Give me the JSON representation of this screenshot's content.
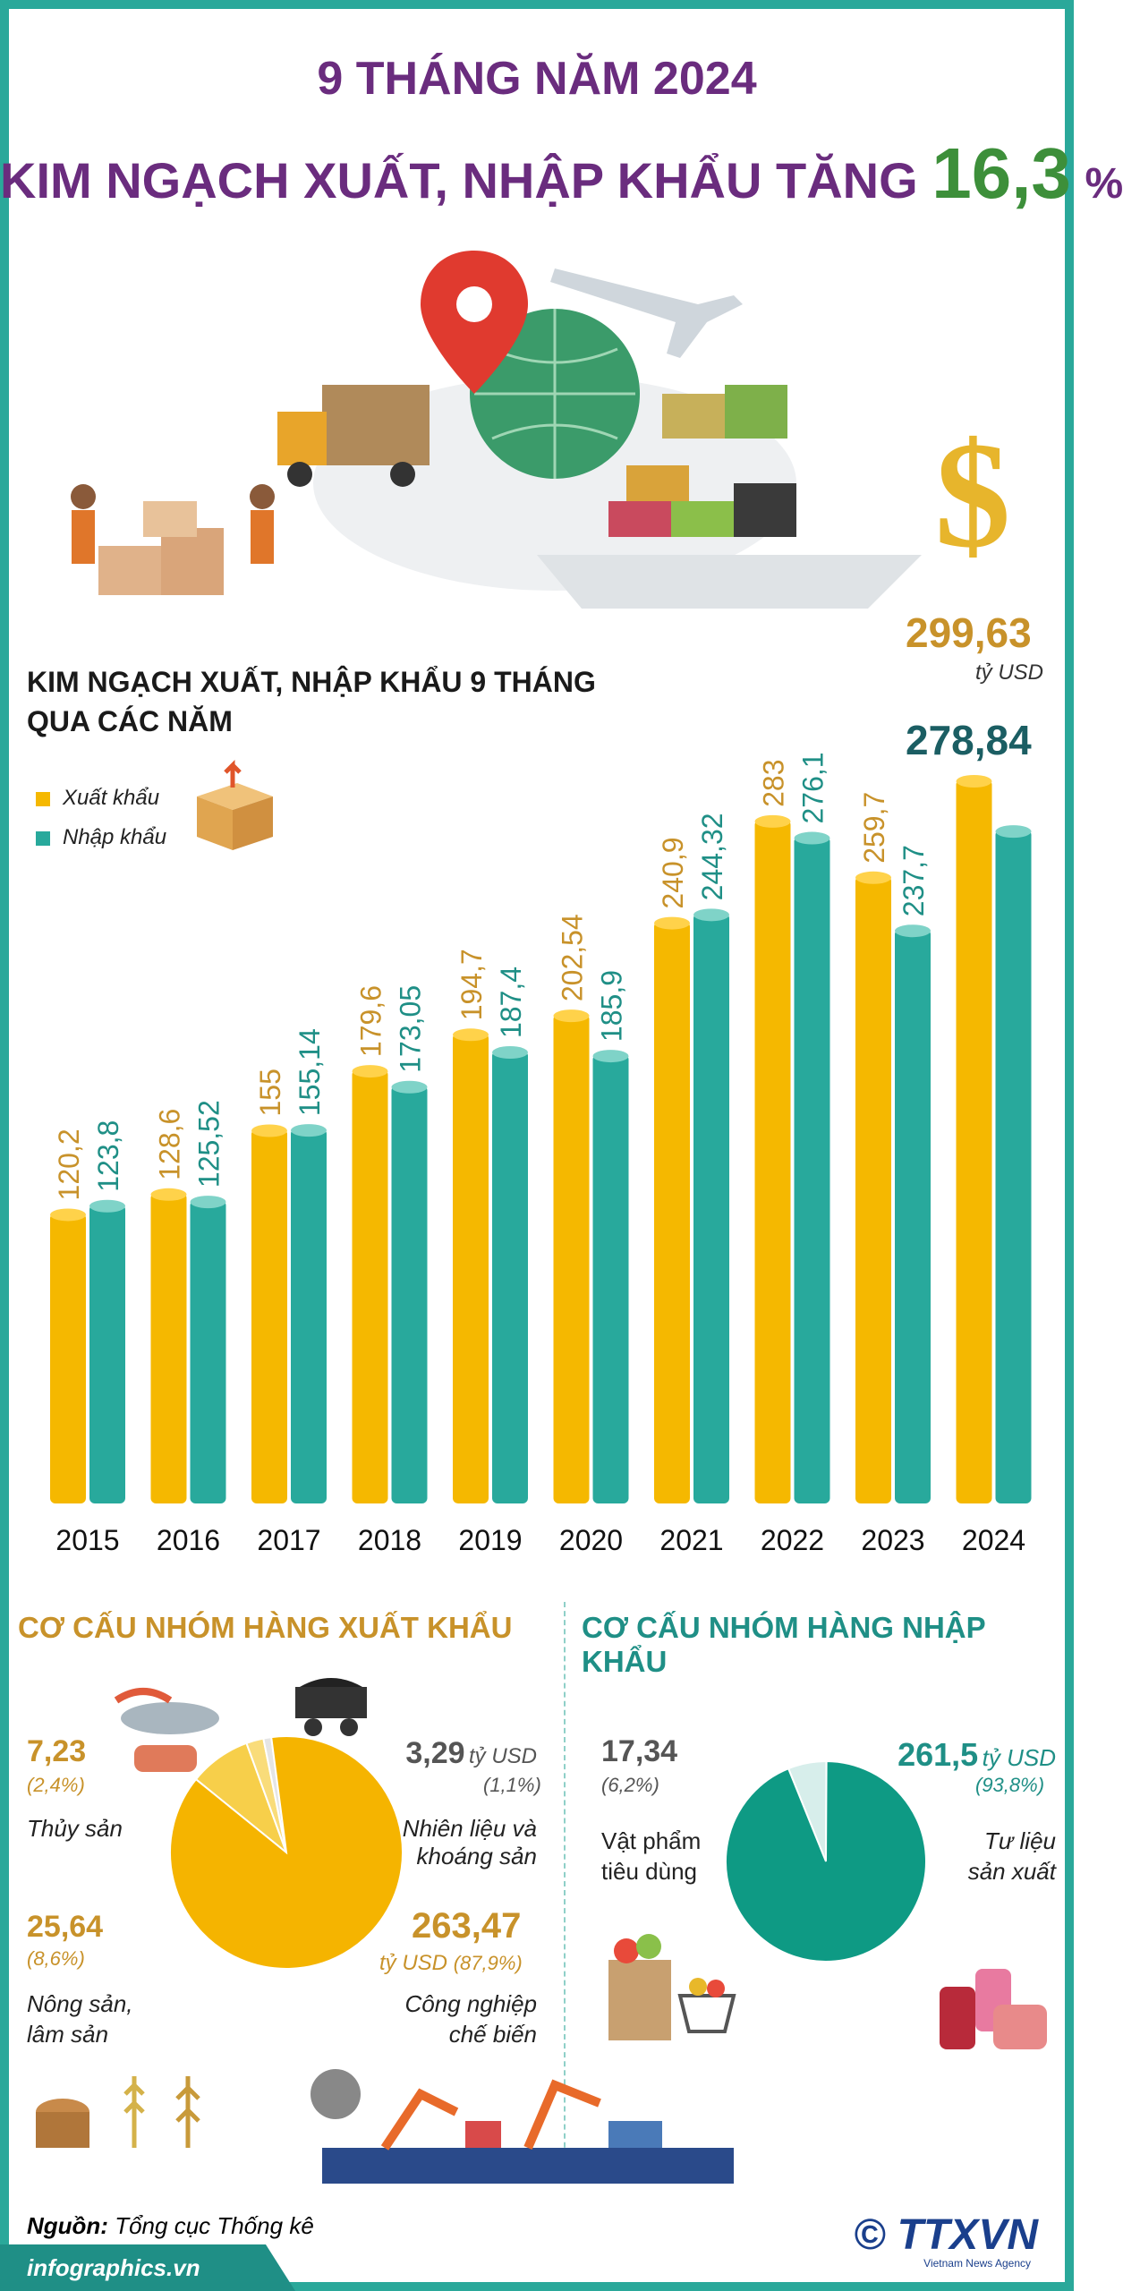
{
  "header": {
    "line1": "9 THÁNG NĂM 2024",
    "line2_prefix": "KIM NGẠCH XUẤT, NHẬP KHẨU TĂNG",
    "line2_value": "16,3",
    "line2_unit": "%"
  },
  "chart_section": {
    "title_line1": "KIM NGẠCH XUẤT, NHẬP KHẨU 9 THÁNG",
    "title_line2": "QUA CÁC NĂM"
  },
  "chart_data": {
    "type": "bar",
    "categories": [
      "2015",
      "2016",
      "2017",
      "2018",
      "2019",
      "2020",
      "2021",
      "2022",
      "2023",
      "2024"
    ],
    "series": [
      {
        "name": "Xuất khẩu",
        "values": [
          120.2,
          128.6,
          155,
          179.6,
          194.7,
          202.54,
          240.9,
          283,
          259.7,
          299.63
        ],
        "labels": [
          "120,2",
          "128,6",
          "155",
          "179,6",
          "194,7",
          "202,54",
          "240,9",
          "283",
          "259,7",
          "299,63"
        ],
        "color": "#f5b800"
      },
      {
        "name": "Nhập khẩu",
        "values": [
          123.8,
          125.52,
          155.14,
          173.05,
          187.4,
          185.9,
          244.32,
          276.1,
          237.7,
          278.84
        ],
        "labels": [
          "123,8",
          "125,52",
          "155,14",
          "173,05",
          "187,4",
          "185,9",
          "244,32",
          "276,1",
          "237,7",
          "278,84"
        ],
        "color": "#28a99c"
      }
    ],
    "ylim": [
      0,
      300
    ],
    "highlight": {
      "export_value": "299,63",
      "import_value": "278,84",
      "unit": "tỷ USD"
    }
  },
  "export_structure": {
    "title": "CƠ CẤU NHÓM HÀNG XUẤT KHẨU",
    "items": [
      {
        "name": "Thủy sản",
        "value": "7,23",
        "pct": "(2,4%)",
        "share": 2.4
      },
      {
        "name_l1": "Nhiên liệu và",
        "name_l2": "khoáng sản",
        "value": "3,29",
        "unit": "tỷ USD",
        "pct": "(1,1%)",
        "share": 1.1
      },
      {
        "name_l1": "Nông sản,",
        "name_l2": "lâm sản",
        "value": "25,64",
        "pct": "(8,6%)",
        "share": 8.6
      },
      {
        "name_l1": "Công nghiệp",
        "name_l2": "chế biến",
        "value": "263,47",
        "unit": "tỷ USD",
        "pct": "(87,9%)",
        "share": 87.9
      }
    ]
  },
  "import_structure": {
    "title": "CƠ CẤU NHÓM HÀNG NHẬP KHẨU",
    "items": [
      {
        "name_l1": "Vật phẩm",
        "name_l2": "tiêu dùng",
        "value": "17,34",
        "pct": "(6,2%)",
        "share": 6.2
      },
      {
        "name_l1": "Tư liệu",
        "name_l2": "sản xuất",
        "value": "261,5",
        "unit": "tỷ USD",
        "pct": "(93,8%)",
        "share": 93.8
      }
    ]
  },
  "footer": {
    "source_label": "Nguồn:",
    "source_text": "Tổng cục Thống kê",
    "site": "infographics.vn",
    "brand": "© TTXVN",
    "brand_sub": "Vietnam News Agency"
  },
  "colors": {
    "purple": "#6a2c7e",
    "green": "#3d8f3a",
    "gold": "#c8922a",
    "teal": "#1f8f86",
    "dark_teal": "#1b5e63"
  }
}
